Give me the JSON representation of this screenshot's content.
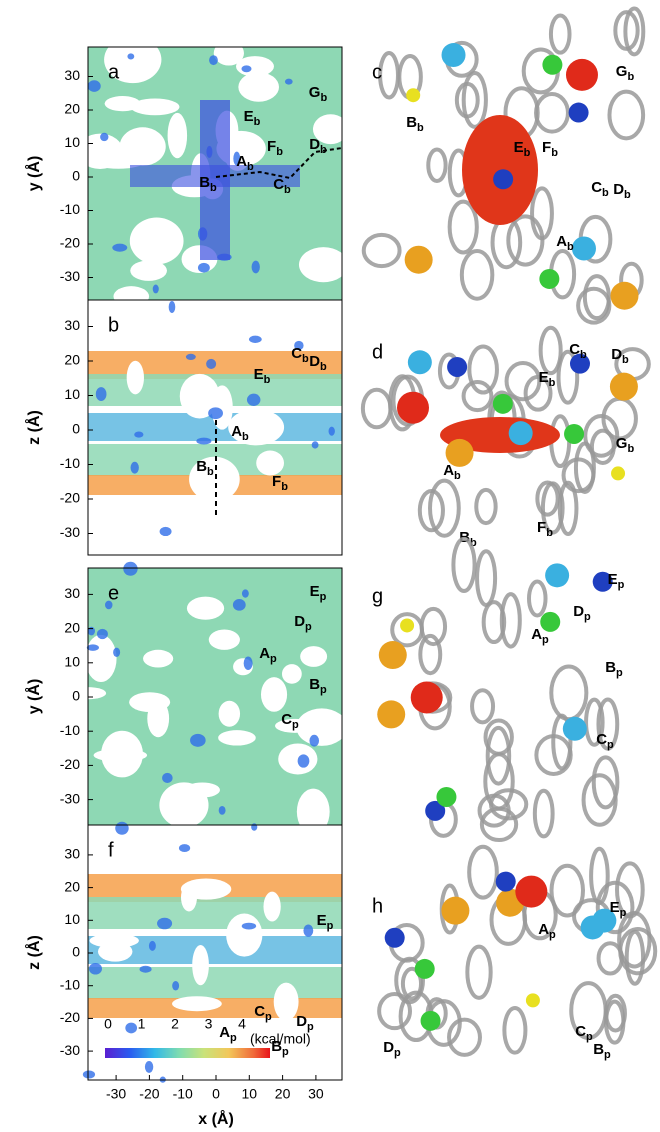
{
  "axes": {
    "x_label": "x (Å)",
    "xticks": [
      -30,
      -20,
      -10,
      0,
      10,
      20,
      30
    ]
  },
  "panels": [
    {
      "label": "a",
      "y_label": "y (Å)",
      "yticks": [
        30,
        20,
        10,
        0,
        -10,
        -20,
        -30
      ],
      "sites": [
        [
          "A",
          "b"
        ],
        [
          "B",
          "b"
        ],
        [
          "C",
          "b"
        ],
        [
          "D",
          "b"
        ],
        [
          "E",
          "b"
        ],
        [
          "F",
          "b"
        ],
        [
          "G",
          "b"
        ]
      ]
    },
    {
      "label": "b",
      "y_label": "z (Å)",
      "yticks": [
        30,
        20,
        10,
        0,
        -10,
        -20,
        -30
      ],
      "sites": [
        [
          "A",
          "b"
        ],
        [
          "B",
          "b"
        ],
        [
          "C",
          "b"
        ],
        [
          "D",
          "b"
        ],
        [
          "E",
          "b"
        ],
        [
          "F",
          "b"
        ]
      ]
    },
    {
      "label": "e",
      "y_label": "y (Å)",
      "yticks": [
        30,
        20,
        10,
        0,
        -10,
        -20,
        -30
      ],
      "sites": [
        [
          "A",
          "p"
        ],
        [
          "B",
          "p"
        ],
        [
          "C",
          "p"
        ],
        [
          "D",
          "p"
        ],
        [
          "E",
          "p"
        ]
      ]
    },
    {
      "label": "f",
      "y_label": "z (Å)",
      "yticks": [
        30,
        20,
        10,
        0,
        -10,
        -20,
        -30
      ],
      "sites": [
        [
          "A",
          "p"
        ],
        [
          "B",
          "p"
        ],
        [
          "C",
          "p"
        ],
        [
          "D",
          "p"
        ],
        [
          "E",
          "p"
        ]
      ]
    }
  ],
  "structures": [
    {
      "label": "c",
      "sites": [
        [
          "A",
          "b"
        ],
        [
          "B",
          "b"
        ],
        [
          "C",
          "b"
        ],
        [
          "D",
          "b"
        ],
        [
          "E",
          "b"
        ],
        [
          "F",
          "b"
        ],
        [
          "G",
          "b"
        ]
      ]
    },
    {
      "label": "d",
      "sites": [
        [
          "A",
          "b"
        ],
        [
          "B",
          "b"
        ],
        [
          "C",
          "b"
        ],
        [
          "D",
          "b"
        ],
        [
          "E",
          "b"
        ],
        [
          "F",
          "b"
        ],
        [
          "G",
          "b"
        ]
      ]
    },
    {
      "label": "g",
      "sites": [
        [
          "A",
          "p"
        ],
        [
          "B",
          "p"
        ],
        [
          "C",
          "p"
        ],
        [
          "D",
          "p"
        ],
        [
          "E",
          "p"
        ]
      ]
    },
    {
      "label": "h",
      "sites": [
        [
          "A",
          "p"
        ],
        [
          "B",
          "p"
        ],
        [
          "C",
          "p"
        ],
        [
          "D",
          "p"
        ],
        [
          "E",
          "p"
        ]
      ]
    }
  ],
  "colorbar": {
    "ticks": [
      0,
      1,
      2,
      3,
      4
    ],
    "unit": "(kcal/mol)"
  }
}
